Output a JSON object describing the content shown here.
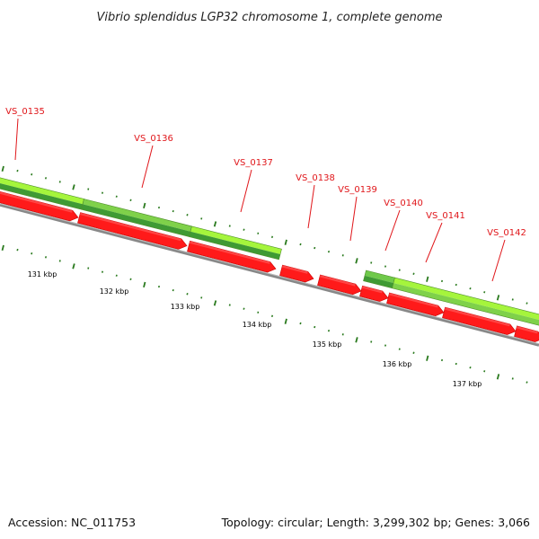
{
  "title": "Vibrio splendidus LGP32 chromosome 1, complete genome",
  "footer": {
    "accession": "Accession: NC_011753",
    "summary": "Topology: circular; Length: 3,299,302 bp; Genes: 3,066"
  },
  "colors": {
    "forward_cds_light": "#a5f53c",
    "forward_cds_dark": "#3f9a34",
    "reverse_cds": "#ff1a1a",
    "backbone": "#888888",
    "tick": "#2a7a1e",
    "gene_label": "#e0161a"
  },
  "kbp_labels": [
    "131 kbp",
    "132 kbp",
    "133 kbp",
    "134 kbp",
    "135 kbp",
    "136 kbp",
    "137 kbp"
  ],
  "genes": [
    {
      "name": "VS_0135"
    },
    {
      "name": "VS_0136"
    },
    {
      "name": "VS_0137"
    },
    {
      "name": "VS_0138"
    },
    {
      "name": "VS_0139"
    },
    {
      "name": "VS_0140"
    },
    {
      "name": "VS_0141"
    },
    {
      "name": "VS_0142"
    }
  ]
}
